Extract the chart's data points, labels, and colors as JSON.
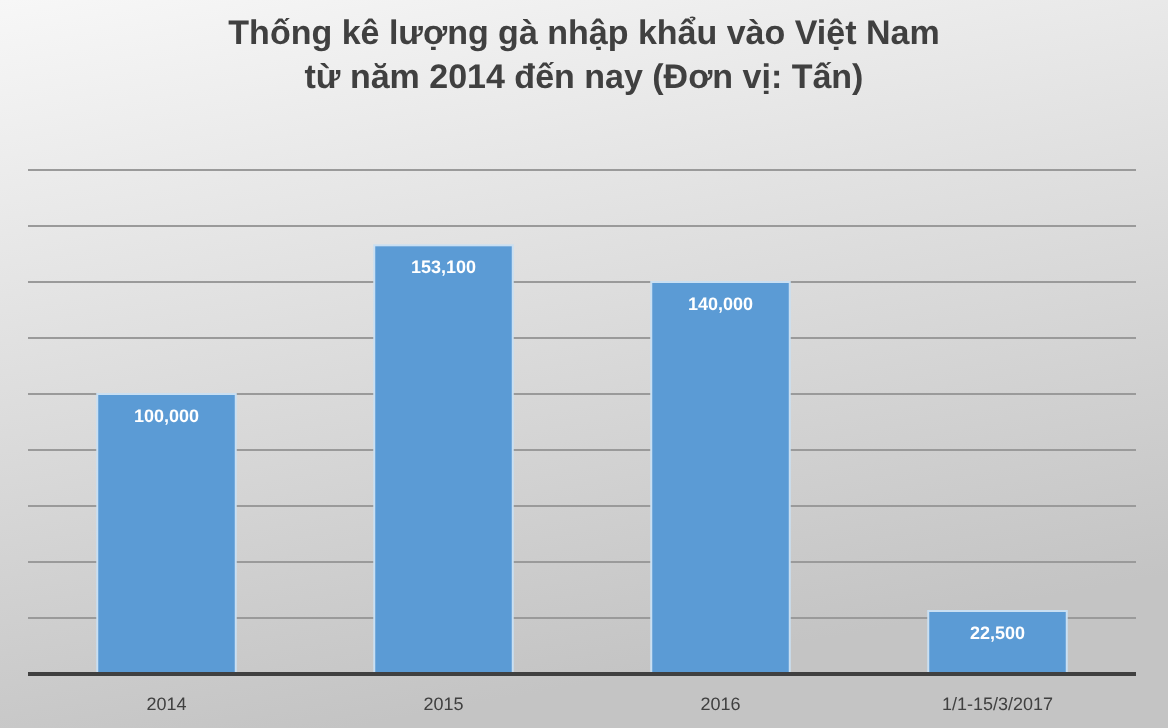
{
  "chart_data": {
    "type": "bar",
    "title": "Thống kê lượng gà nhập khẩu vào Việt Nam\ntừ năm 2014 đến nay (Đơn vị: Tấn)",
    "categories": [
      "2014",
      "2015",
      "2016",
      "1/1-15/3/2017"
    ],
    "values": [
      100000,
      153100,
      140000,
      22500
    ],
    "value_labels": [
      "100,000",
      "153,100",
      "140,000",
      "22,500"
    ],
    "color": "#5b9bd5",
    "ylim": [
      0,
      180000
    ],
    "yticks": [
      {
        "value": 0,
        "label": null
      },
      {
        "value": 20000,
        "label": null
      },
      {
        "value": 40000,
        "label": null
      },
      {
        "value": 60000,
        "label": null
      },
      {
        "value": 80000,
        "label": null
      },
      {
        "value": 100000,
        "label": null
      },
      {
        "value": 120000,
        "label": null
      },
      {
        "value": 140000,
        "label": null
      },
      {
        "value": 160000,
        "label": null
      },
      {
        "value": 180000,
        "label": null
      }
    ],
    "grid": "y",
    "tick_labels": "x"
  }
}
